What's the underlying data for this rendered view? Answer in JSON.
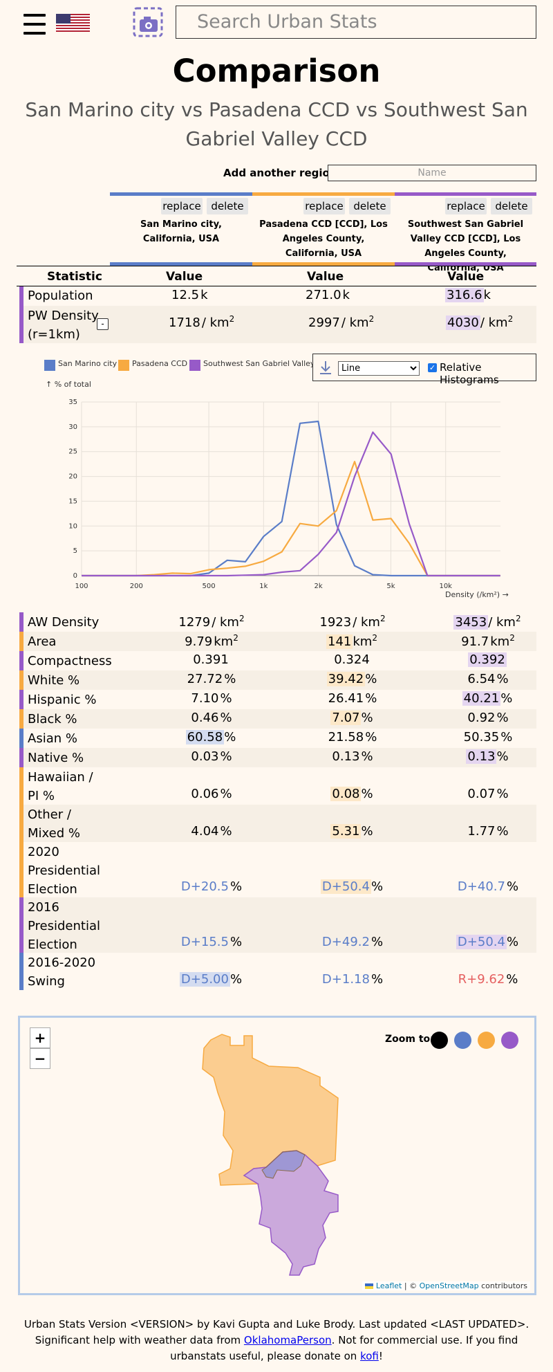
{
  "header": {
    "search_placeholder": "Search Urban Stats",
    "title": "Comparison",
    "subtitle": "San Marino city vs Pasadena CCD vs Southwest San Gabriel Valley CCD"
  },
  "add_region": {
    "label": "Add another region:",
    "placeholder": "Name"
  },
  "regions": [
    {
      "name": "San Marino city, California, USA",
      "color": "#5a7dc8",
      "replace": "replace",
      "delete": "delete"
    },
    {
      "name": "Pasadena CCD [CCD], Los Angeles County, California, USA",
      "color": "#f7aa41",
      "replace": "replace",
      "delete": "delete"
    },
    {
      "name": "Southwest San Gabriel Valley CCD [CCD], Los Angeles County, California, USA",
      "color": "#975ac8",
      "replace": "replace",
      "delete": "delete"
    }
  ],
  "columns": {
    "statistic": "Statistic",
    "value": "Value"
  },
  "stats_top": [
    {
      "name": "Population",
      "values": [
        "12.5",
        "271.0",
        "316.6"
      ],
      "unit": "k"
    },
    {
      "name": "PW Density (r=1km)",
      "values": [
        "1718",
        "2997",
        "4030"
      ],
      "unit": "/ km",
      "unit_sup": "2",
      "toggle": "-"
    }
  ],
  "histogram": {
    "legend": [
      "San Marino city",
      "Pasadena CCD",
      "Southwest San Gabriel Valley CCD"
    ],
    "y_axis_label": "↑ % of total",
    "x_axis_label": "Density (/km²) →",
    "y_ticks": [
      "0",
      "5",
      "10",
      "15",
      "20",
      "25",
      "30",
      "35"
    ],
    "x_ticks": [
      "100",
      "200",
      "500",
      "1k",
      "2k",
      "5k",
      "10k"
    ],
    "control_select": "Line",
    "control_label": "Relative Histograms"
  },
  "chart_data": {
    "type": "line",
    "xlabel": "Density (/km²)",
    "ylabel": "% of total",
    "x_scale": "log",
    "xlim": [
      100,
      20000
    ],
    "ylim": [
      0,
      35
    ],
    "x": [
      100,
      126,
      158,
      200,
      251,
      316,
      398,
      501,
      631,
      794,
      1000,
      1259,
      1585,
      1995,
      2512,
      3162,
      3981,
      5012,
      6310,
      7943,
      10000,
      12589,
      15849,
      19953
    ],
    "series": [
      {
        "name": "San Marino city",
        "values": [
          0,
          0,
          0,
          0,
          0,
          0,
          0,
          0.5,
          3.1,
          2.8,
          7.9,
          10.9,
          30.7,
          31.1,
          10.3,
          2.0,
          0.2,
          0,
          0,
          0,
          0,
          0,
          0,
          0
        ]
      },
      {
        "name": "Pasadena CCD",
        "values": [
          0,
          0,
          0,
          0,
          0.2,
          0.5,
          0.4,
          1.2,
          1.5,
          1.9,
          2.9,
          4.8,
          10.5,
          10.0,
          13.1,
          23.0,
          11.2,
          11.5,
          6.5,
          0,
          0,
          0,
          0,
          0
        ]
      },
      {
        "name": "Southwest San Gabriel Valley CCD",
        "values": [
          0,
          0,
          0,
          0,
          0,
          0,
          0,
          0,
          0,
          0.1,
          0.2,
          0.7,
          1.0,
          4.3,
          8.7,
          20.0,
          28.9,
          24.5,
          10.4,
          0,
          0,
          0,
          0,
          0
        ]
      }
    ]
  },
  "stats_bottom": [
    {
      "name": "AW Density",
      "values": [
        "1279",
        "1923",
        "3453"
      ],
      "unit": "/ km",
      "unit_sup": "2"
    },
    {
      "name": "Area",
      "values": [
        "9.79",
        "141",
        "91.7"
      ],
      "unit": "km",
      "unit_sup": "2"
    },
    {
      "name": "Compactness",
      "values": [
        "0.391",
        "0.324",
        "0.392"
      ],
      "unit": ""
    },
    {
      "name": "White %",
      "values": [
        "27.72",
        "39.42",
        "6.54"
      ],
      "unit": "%"
    },
    {
      "name": "Hispanic %",
      "values": [
        "7.10",
        "26.41",
        "40.21"
      ],
      "unit": "%"
    },
    {
      "name": "Black %",
      "values": [
        "0.46",
        "7.07",
        "0.92"
      ],
      "unit": "%"
    },
    {
      "name": "Asian %",
      "values": [
        "60.58",
        "21.58",
        "50.35"
      ],
      "unit": "%"
    },
    {
      "name": "Native %",
      "values": [
        "0.03",
        "0.13",
        "0.13"
      ],
      "unit": "%"
    },
    {
      "name": "Hawaiian / PI %",
      "values": [
        "0.06",
        "0.08",
        "0.07"
      ],
      "unit": "%"
    },
    {
      "name": "Other / Mixed %",
      "values": [
        "4.04",
        "5.31",
        "1.77"
      ],
      "unit": "%"
    },
    {
      "name": "2020 Presidential Election",
      "values": [
        "D+20.5",
        "D+50.4",
        "D+40.7"
      ],
      "unit": "%"
    },
    {
      "name": "2016 Presidential Election",
      "values": [
        "D+15.5",
        "D+49.2",
        "D+50.4"
      ],
      "unit": "%"
    },
    {
      "name": "2016-2020 Swing",
      "values": [
        "D+5.00",
        "D+1.18",
        "R+9.62"
      ],
      "unit": "%"
    }
  ],
  "map": {
    "zoom_in": "+",
    "zoom_out": "−",
    "zoom_to_label": "Zoom to:",
    "attribution_leaflet": "Leaflet",
    "attribution_sep": " | © ",
    "attribution_osm": "OpenStreetMap",
    "attribution_rest": " contributors"
  },
  "footer": {
    "text1": "Urban Stats Version <VERSION> by Kavi Gupta and Luke Brody. Last updated <LAST UPDATED>. Significant help with weather data from ",
    "link1": "OklahomaPerson",
    "text2": ". Not for commercial use. If you find urbanstats useful, please donate on ",
    "link2": "kofi",
    "text3": "!"
  }
}
